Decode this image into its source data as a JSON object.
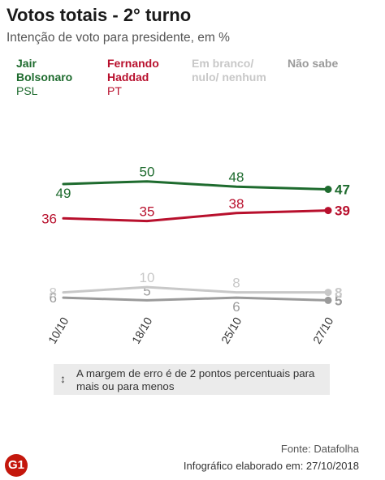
{
  "title": "Votos totais - 2° turno",
  "subtitle": "Intenção de voto para presidente, em %",
  "legend": [
    {
      "name": "Jair\nBolsonaro",
      "party": "PSL",
      "color": "#1e6b2e"
    },
    {
      "name": "Fernando\nHaddad",
      "party": "PT",
      "color": "#b8102d"
    },
    {
      "name": "Em branco/\nnulo/ nenhum",
      "party": "",
      "color": "#c8c8c8"
    },
    {
      "name": "Não sabe",
      "party": "",
      "color": "#9a9a9a"
    }
  ],
  "note": {
    "icon": "vertical-double-arrow-icon",
    "text": "A margem de erro é de 2 pontos percentuais para mais ou para menos"
  },
  "source": "Fonte: Datafolha",
  "credit": "Infográfico elaborado em: 27/10/2018",
  "logo": "G1",
  "chart_data": {
    "type": "line",
    "title": "Votos totais - 2° turno",
    "subtitle": "Intenção de voto para presidente, em %",
    "categories": [
      "10/10",
      "18/10",
      "25/10",
      "27/10"
    ],
    "series": [
      {
        "name": "Jair Bolsonaro",
        "party": "PSL",
        "color": "#1e6b2e",
        "values": [
          49,
          50,
          48,
          47
        ]
      },
      {
        "name": "Fernando Haddad",
        "party": "PT",
        "color": "#b8102d",
        "values": [
          36,
          35,
          38,
          39
        ]
      },
      {
        "name": "Em branco/ nulo/ nenhum",
        "color": "#c8c8c8",
        "values": [
          8,
          10,
          8,
          8
        ]
      },
      {
        "name": "Não sabe",
        "color": "#9a9a9a",
        "values": [
          6,
          5,
          6,
          5
        ]
      }
    ],
    "label_offsets": [
      [
        "below",
        "above",
        "above",
        "right"
      ],
      [
        "above",
        "above",
        "above",
        "right"
      ],
      [
        "left",
        "above",
        "above",
        "right"
      ],
      [
        "left",
        "above",
        "below",
        "right"
      ]
    ],
    "x_tick_labels_rotated": true,
    "grid": false,
    "axes_visible": false,
    "legend_placement": "top"
  }
}
